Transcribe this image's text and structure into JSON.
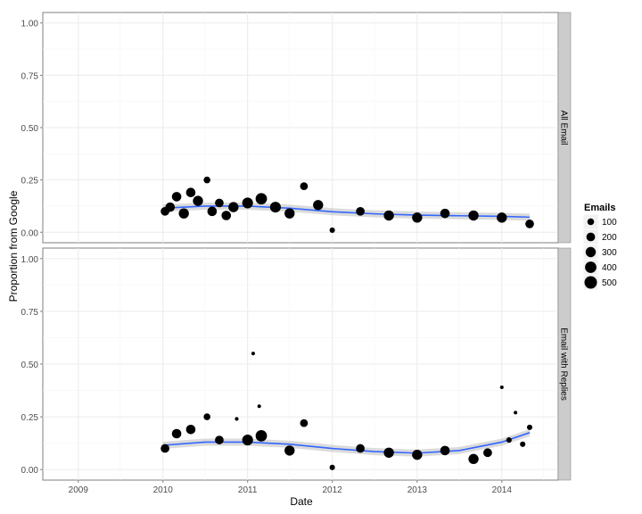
{
  "chart_data": {
    "type": "scatter",
    "xlabel": "Date",
    "ylabel": "Proportion from Google",
    "x_range": [
      "2008-08-01",
      "2014-09-01"
    ],
    "x_ticks": [
      "2009",
      "2010",
      "2011",
      "2012",
      "2013",
      "2014"
    ],
    "ylim": [
      -0.05,
      1.05
    ],
    "y_ticks": [
      "0.00",
      "0.25",
      "0.50",
      "0.75",
      "1.00"
    ],
    "grid": true,
    "smooth_color": "#3366FF",
    "point_color": "#000000",
    "facets": [
      {
        "label": "All Email",
        "points": [
          {
            "date": "2010-01-10",
            "value": 0.1,
            "emails": 200
          },
          {
            "date": "2010-02-01",
            "value": 0.12,
            "emails": 250
          },
          {
            "date": "2010-03-01",
            "value": 0.17,
            "emails": 250
          },
          {
            "date": "2010-04-01",
            "value": 0.09,
            "emails": 300
          },
          {
            "date": "2010-05-01",
            "value": 0.19,
            "emails": 250
          },
          {
            "date": "2010-06-01",
            "value": 0.15,
            "emails": 300
          },
          {
            "date": "2010-07-10",
            "value": 0.25,
            "emails": 100
          },
          {
            "date": "2010-08-01",
            "value": 0.1,
            "emails": 250
          },
          {
            "date": "2010-09-01",
            "value": 0.14,
            "emails": 200
          },
          {
            "date": "2010-10-01",
            "value": 0.08,
            "emails": 250
          },
          {
            "date": "2010-11-01",
            "value": 0.12,
            "emails": 300
          },
          {
            "date": "2011-01-01",
            "value": 0.14,
            "emails": 350
          },
          {
            "date": "2011-03-01",
            "value": 0.16,
            "emails": 400
          },
          {
            "date": "2011-05-01",
            "value": 0.12,
            "emails": 350
          },
          {
            "date": "2011-07-01",
            "value": 0.09,
            "emails": 300
          },
          {
            "date": "2011-09-01",
            "value": 0.22,
            "emails": 150
          },
          {
            "date": "2011-11-01",
            "value": 0.13,
            "emails": 300
          },
          {
            "date": "2012-01-01",
            "value": 0.01,
            "emails": 50
          },
          {
            "date": "2012-05-01",
            "value": 0.1,
            "emails": 200
          },
          {
            "date": "2012-09-01",
            "value": 0.08,
            "emails": 300
          },
          {
            "date": "2013-01-01",
            "value": 0.07,
            "emails": 300
          },
          {
            "date": "2013-05-01",
            "value": 0.09,
            "emails": 250
          },
          {
            "date": "2013-09-01",
            "value": 0.08,
            "emails": 300
          },
          {
            "date": "2014-01-01",
            "value": 0.07,
            "emails": 300
          },
          {
            "date": "2014-05-01",
            "value": 0.04,
            "emails": 200
          }
        ],
        "smooth": [
          {
            "date": "2010-01-01",
            "value": 0.115
          },
          {
            "date": "2010-07-01",
            "value": 0.125
          },
          {
            "date": "2011-01-01",
            "value": 0.125
          },
          {
            "date": "2011-07-01",
            "value": 0.115
          },
          {
            "date": "2012-01-01",
            "value": 0.098
          },
          {
            "date": "2012-07-01",
            "value": 0.088
          },
          {
            "date": "2013-01-01",
            "value": 0.082
          },
          {
            "date": "2013-07-01",
            "value": 0.079
          },
          {
            "date": "2014-01-01",
            "value": 0.076
          },
          {
            "date": "2014-05-01",
            "value": 0.072
          }
        ]
      },
      {
        "label": "Email with Replies",
        "points": [
          {
            "date": "2010-01-10",
            "value": 0.1,
            "emails": 200
          },
          {
            "date": "2010-03-01",
            "value": 0.17,
            "emails": 250
          },
          {
            "date": "2010-05-01",
            "value": 0.19,
            "emails": 250
          },
          {
            "date": "2010-07-10",
            "value": 0.25,
            "emails": 100
          },
          {
            "date": "2010-09-01",
            "value": 0.14,
            "emails": 200
          },
          {
            "date": "2010-11-15",
            "value": 0.24,
            "emails": 10
          },
          {
            "date": "2011-01-01",
            "value": 0.14,
            "emails": 350
          },
          {
            "date": "2011-01-25",
            "value": 0.55,
            "emails": 10
          },
          {
            "date": "2011-02-20",
            "value": 0.3,
            "emails": 10
          },
          {
            "date": "2011-03-01",
            "value": 0.16,
            "emails": 400
          },
          {
            "date": "2011-07-01",
            "value": 0.09,
            "emails": 300
          },
          {
            "date": "2011-09-01",
            "value": 0.22,
            "emails": 150
          },
          {
            "date": "2012-01-01",
            "value": 0.01,
            "emails": 50
          },
          {
            "date": "2012-05-01",
            "value": 0.1,
            "emails": 200
          },
          {
            "date": "2012-09-01",
            "value": 0.08,
            "emails": 300
          },
          {
            "date": "2013-01-01",
            "value": 0.07,
            "emails": 300
          },
          {
            "date": "2013-05-01",
            "value": 0.09,
            "emails": 250
          },
          {
            "date": "2013-09-01",
            "value": 0.05,
            "emails": 300
          },
          {
            "date": "2013-11-01",
            "value": 0.08,
            "emails": 200
          },
          {
            "date": "2014-01-01",
            "value": 0.39,
            "emails": 10
          },
          {
            "date": "2014-02-01",
            "value": 0.14,
            "emails": 50
          },
          {
            "date": "2014-03-01",
            "value": 0.27,
            "emails": 10
          },
          {
            "date": "2014-04-01",
            "value": 0.12,
            "emails": 50
          },
          {
            "date": "2014-05-01",
            "value": 0.2,
            "emails": 50
          }
        ],
        "smooth": [
          {
            "date": "2010-01-01",
            "value": 0.115
          },
          {
            "date": "2010-07-01",
            "value": 0.13
          },
          {
            "date": "2011-01-01",
            "value": 0.13
          },
          {
            "date": "2011-07-01",
            "value": 0.12
          },
          {
            "date": "2012-01-01",
            "value": 0.1
          },
          {
            "date": "2012-07-01",
            "value": 0.085
          },
          {
            "date": "2013-01-01",
            "value": 0.078
          },
          {
            "date": "2013-07-01",
            "value": 0.09
          },
          {
            "date": "2014-01-01",
            "value": 0.13
          },
          {
            "date": "2014-05-01",
            "value": 0.175
          }
        ]
      }
    ],
    "legend": {
      "title": "Emails",
      "position": "right",
      "entries": [
        {
          "label": "100",
          "value": 100
        },
        {
          "label": "200",
          "value": 200
        },
        {
          "label": "300",
          "value": 300
        },
        {
          "label": "400",
          "value": 400
        },
        {
          "label": "500",
          "value": 500
        }
      ]
    }
  }
}
